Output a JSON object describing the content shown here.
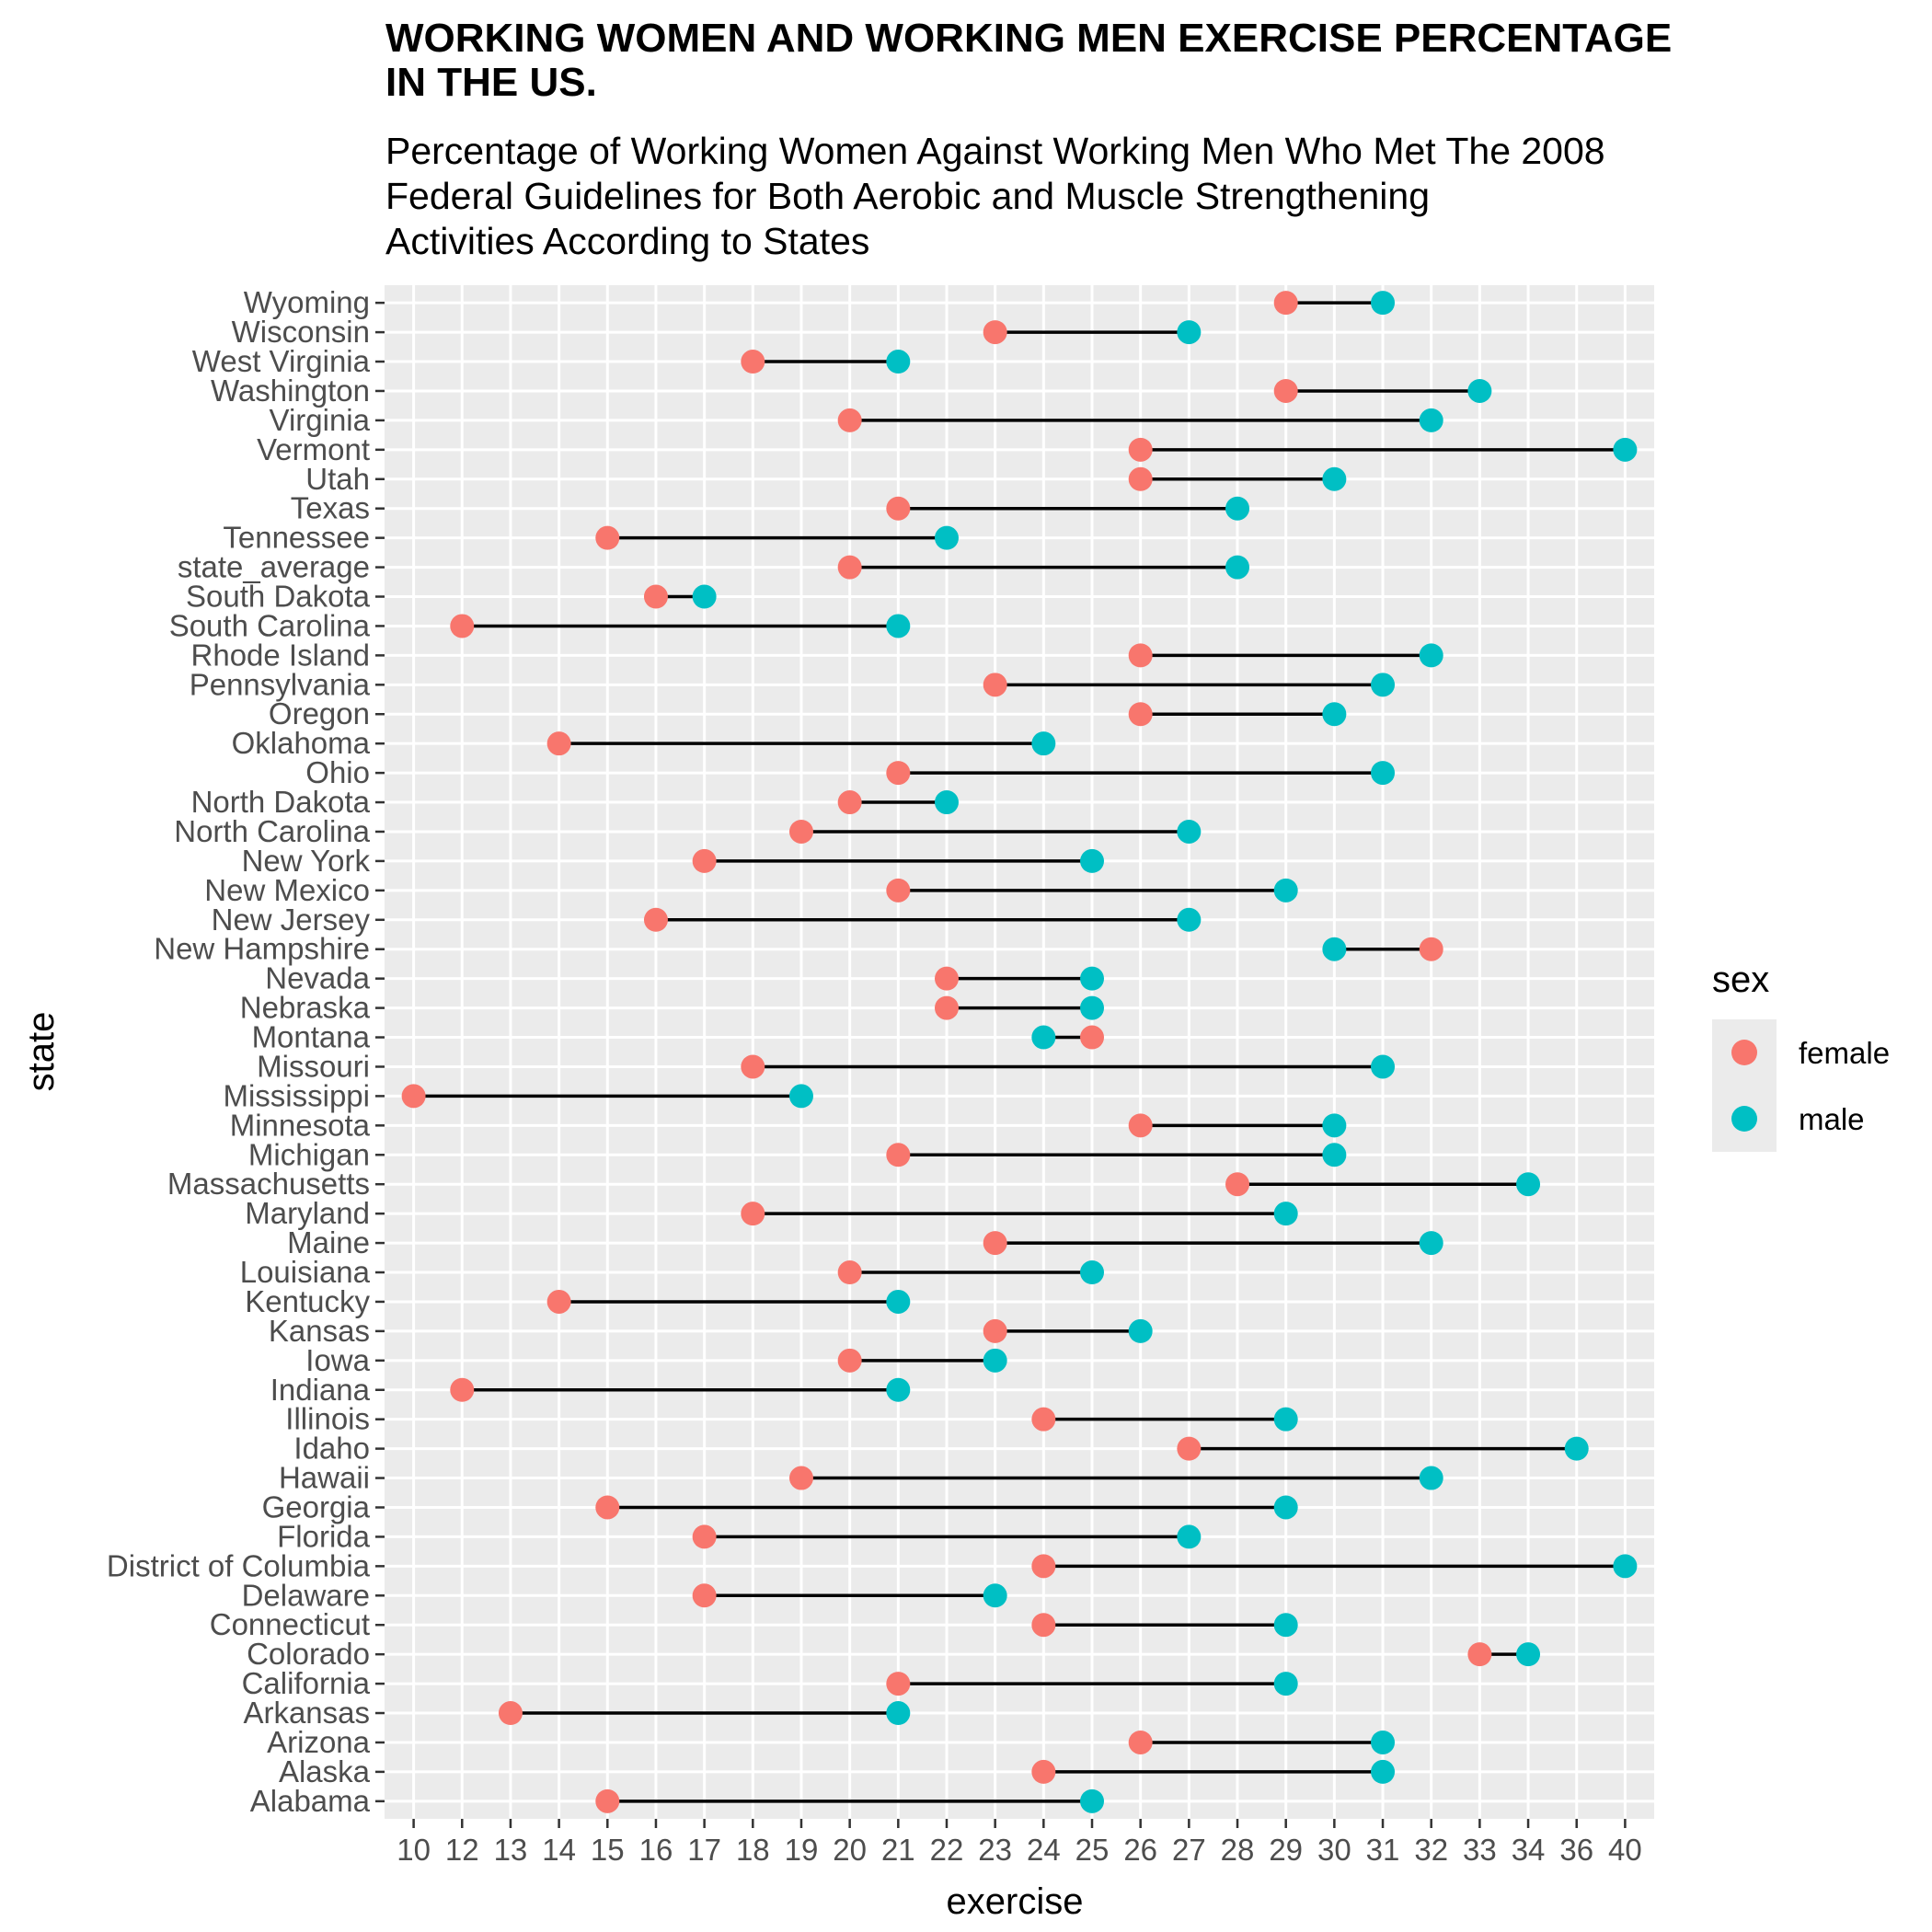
{
  "chart_data": {
    "type": "dumbbell",
    "title": "WORKING WOMEN AND WORKING MEN EXERCISE PERCENTAGE\n IN THE US.",
    "subtitle": "Percentage of Working Women Against Working Men Who Met The 2008\nFederal Guidelines for Both Aerobic and Muscle Strengthening\nActivities According to States",
    "xlabel": "exercise",
    "ylabel": "state",
    "x_ticks": [
      "10",
      "12",
      "13",
      "14",
      "15",
      "16",
      "17",
      "18",
      "19",
      "20",
      "21",
      "22",
      "23",
      "24",
      "25",
      "26",
      "27",
      "28",
      "29",
      "30",
      "31",
      "32",
      "33",
      "34",
      "36",
      "40"
    ],
    "legend": {
      "title": "sex",
      "position": "right",
      "entries": [
        {
          "name": "female",
          "color": "#F8766D"
        },
        {
          "name": "male",
          "color": "#00BFC4"
        }
      ]
    },
    "grid": true,
    "background": "#EBEBEB",
    "segment_color": "#000000",
    "categories": [
      "Wyoming",
      "Wisconsin",
      "West Virginia",
      "Washington",
      "Virginia",
      "Vermont",
      "Utah",
      "Texas",
      "Tennessee",
      "state_average",
      "South Dakota",
      "South Carolina",
      "Rhode Island",
      "Pennsylvania",
      "Oregon",
      "Oklahoma",
      "Ohio",
      "North Dakota",
      "North Carolina",
      "New York",
      "New Mexico",
      "New Jersey",
      "New Hampshire",
      "Nevada",
      "Nebraska",
      "Montana",
      "Missouri",
      "Mississippi",
      "Minnesota",
      "Michigan",
      "Massachusetts",
      "Maryland",
      "Maine",
      "Louisiana",
      "Kentucky",
      "Kansas",
      "Iowa",
      "Indiana",
      "Illinois",
      "Idaho",
      "Hawaii",
      "Georgia",
      "Florida",
      "District of Columbia",
      "Delaware",
      "Connecticut",
      "Colorado",
      "California",
      "Arkansas",
      "Arizona",
      "Alaska",
      "Alabama"
    ],
    "series": [
      {
        "name": "female",
        "values": [
          29,
          23,
          18,
          29,
          20,
          26,
          26,
          21,
          15,
          20,
          16,
          12,
          26,
          23,
          26,
          14,
          21,
          20,
          19,
          17,
          21,
          16,
          32,
          22,
          22,
          25,
          18,
          10,
          26,
          21,
          28,
          18,
          23,
          20,
          14,
          23,
          20,
          12,
          24,
          27,
          19,
          15,
          17,
          24,
          17,
          24,
          33,
          21,
          13,
          26,
          24,
          15
        ]
      },
      {
        "name": "male",
        "values": [
          31,
          27,
          21,
          33,
          32,
          40,
          30,
          28,
          22,
          28,
          17,
          21,
          32,
          31,
          30,
          24,
          31,
          22,
          27,
          25,
          29,
          27,
          30,
          25,
          25,
          24,
          31,
          19,
          30,
          30,
          34,
          29,
          32,
          25,
          21,
          26,
          23,
          21,
          29,
          36,
          32,
          29,
          27,
          40,
          23,
          29,
          34,
          29,
          21,
          31,
          31,
          25
        ]
      }
    ]
  }
}
